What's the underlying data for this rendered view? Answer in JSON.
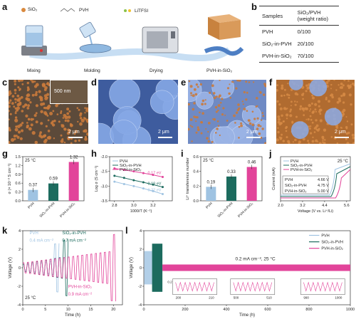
{
  "panel_labels": {
    "a": "a",
    "b": "b",
    "c": "c",
    "d": "d",
    "e": "e",
    "f": "f",
    "g": "g",
    "h": "h",
    "i": "i",
    "j": "j",
    "k": "k",
    "l": "l"
  },
  "panel_a": {
    "legend": [
      "SiO₂",
      "PVH",
      "LiTFSI"
    ],
    "steps": [
      "Mixing",
      "Molding",
      "Drying",
      "PVH-in-SiO₂"
    ],
    "colors": {
      "sio2": "#d98a3f",
      "arrow": "#9ec3e8"
    }
  },
  "panel_b": {
    "headers": [
      "Samples",
      "SiO₂/PVH (weight ratio)"
    ],
    "rows": [
      {
        "sample": "PVH",
        "ratio": "0/100"
      },
      {
        "sample": "SiO₂-in-PVH",
        "ratio": "20/100"
      },
      {
        "sample": "PVH-in-SiO₂",
        "ratio": "70/100"
      }
    ]
  },
  "sem": {
    "c_scale": "2 μm",
    "c_inset_scale": "500 nm",
    "d_scale": "2 μm",
    "e_scale": "2 μm",
    "f_scale": "2 μm",
    "colors": {
      "orange": "#c97a3c",
      "blue": "#7d9fd8"
    }
  },
  "chart_data": [
    {
      "panel": "g",
      "type": "bar",
      "annotation": "25 °C",
      "categories": [
        "PVH",
        "SiO₂-in-PVH",
        "PVH-in-SiO₂"
      ],
      "values": [
        0.37,
        0.59,
        1.32
      ],
      "value_labels": [
        "0.37",
        "0.59",
        "1.32"
      ],
      "colors": [
        "#9fc3e2",
        "#1c6b5e",
        "#e2449a"
      ],
      "ylabel": "σ (× 10⁻³ S cm⁻¹)",
      "ylim": [
        0,
        1.5
      ],
      "yticks": [
        "0.0",
        "0.3",
        "0.6",
        "0.9",
        "1.2",
        "1.5"
      ]
    },
    {
      "panel": "h",
      "type": "line",
      "series": [
        {
          "name": "PVH",
          "color": "#9fc3e2",
          "x": [
            2.8,
            2.9,
            3.0,
            3.1,
            3.2,
            3.3
          ],
          "y": [
            -2.85,
            -2.93,
            -3.0,
            -3.08,
            -3.17,
            -3.27
          ],
          "ea": "0.22 eV"
        },
        {
          "name": "SiO₂-in-PVH",
          "color": "#1c6b5e",
          "x": [
            2.8,
            2.9,
            3.0,
            3.1,
            3.2,
            3.3
          ],
          "y": [
            -2.65,
            -2.72,
            -2.8,
            -2.87,
            -2.95,
            -3.03
          ],
          "ea": "0.19 eV"
        },
        {
          "name": "PVH-in-SiO₂",
          "color": "#e2449a",
          "x": [
            2.8,
            2.9,
            3.0,
            3.1,
            3.2,
            3.3
          ],
          "y": [
            -2.4,
            -2.45,
            -2.5,
            -2.56,
            -2.62,
            -2.69
          ],
          "ea": "0.17 eV"
        }
      ],
      "xlabel": "1000/T (K⁻¹)",
      "ylabel": "Log σ (S cm⁻¹)",
      "xlim": [
        2.75,
        3.4
      ],
      "ylim": [
        -3.5,
        -2.0
      ],
      "xticks": [
        "2.8",
        "3.0",
        "3.2"
      ],
      "yticks": [
        "-2.0",
        "-2.5",
        "-3.0",
        "-3.5"
      ]
    },
    {
      "panel": "i",
      "type": "bar",
      "annotation": "25 °C",
      "categories": [
        "PVH",
        "SiO₂-in-PVH",
        "PVH-in-SiO₂"
      ],
      "values": [
        0.19,
        0.33,
        0.46
      ],
      "value_labels": [
        "0.19",
        "0.33",
        "0.46"
      ],
      "colors": [
        "#9fc3e2",
        "#1c6b5e",
        "#e2449a"
      ],
      "ylabel": "Li⁺ transference number",
      "ylim": [
        0,
        0.6
      ],
      "yticks": [
        "0.0",
        "0.2",
        "0.4",
        "0.6"
      ]
    },
    {
      "panel": "j",
      "type": "line",
      "annotation": "25 °C",
      "series": [
        {
          "name": "PVH",
          "color": "#9fc3e2",
          "onset": "4.66 V"
        },
        {
          "name": "SiO₂-in-PVH",
          "color": "#1c6b5e",
          "onset": "4.75 V"
        },
        {
          "name": "PVH-in-SiO₂",
          "color": "#e2449a",
          "onset": "5.00 V"
        }
      ],
      "xlabel": "Voltage (V vs. Li⁺/Li)",
      "ylabel": "Current (mA)",
      "xlim": [
        2.0,
        5.8
      ],
      "xticks": [
        "2.0",
        "3.2",
        "4.4",
        "5.6"
      ]
    },
    {
      "panel": "k",
      "type": "line",
      "annotation": "25 °C",
      "series": [
        {
          "name": "PVH",
          "color": "#9fc3e2",
          "current": "0.4 mA cm⁻²"
        },
        {
          "name": "SiO₂-in-PVH",
          "color": "#1c6b5e",
          "current": "0.7 mA cm⁻²"
        },
        {
          "name": "PVH-in-SiO₂",
          "color": "#e2449a",
          "current": "0.9 mA cm⁻²"
        }
      ],
      "xlabel": "Time (h)",
      "ylabel": "Voltage (V)",
      "xlim": [
        0,
        22
      ],
      "ylim": [
        -4,
        4
      ],
      "xticks": [
        "0",
        "5",
        "10",
        "15",
        "20"
      ],
      "yticks": [
        "-4",
        "-2",
        "0",
        "2",
        "4"
      ]
    },
    {
      "panel": "l",
      "type": "line",
      "annotation": "0.2 mA cm⁻², 25 °C",
      "series": [
        {
          "name": "PVH",
          "color": "#9fc3e2"
        },
        {
          "name": "SiO₂-in-PVH",
          "color": "#1c6b5e"
        },
        {
          "name": "PVH-in-SiO₂",
          "color": "#e2449a"
        }
      ],
      "xlabel": "Time (h)",
      "ylabel": "Voltage (V)",
      "xlim": [
        0,
        1000
      ],
      "ylim": [
        -4,
        4
      ],
      "xticks": [
        "0",
        "200",
        "400",
        "600",
        "800",
        "1000"
      ],
      "yticks": [
        "-4",
        "-2",
        "0",
        "2",
        "4"
      ],
      "insets": [
        {
          "xticks": [
            "200",
            "210"
          ],
          "ylim_label": "0.2"
        },
        {
          "xticks": [
            "500",
            "510"
          ]
        },
        {
          "xticks": [
            "990",
            "1000"
          ]
        }
      ]
    }
  ]
}
